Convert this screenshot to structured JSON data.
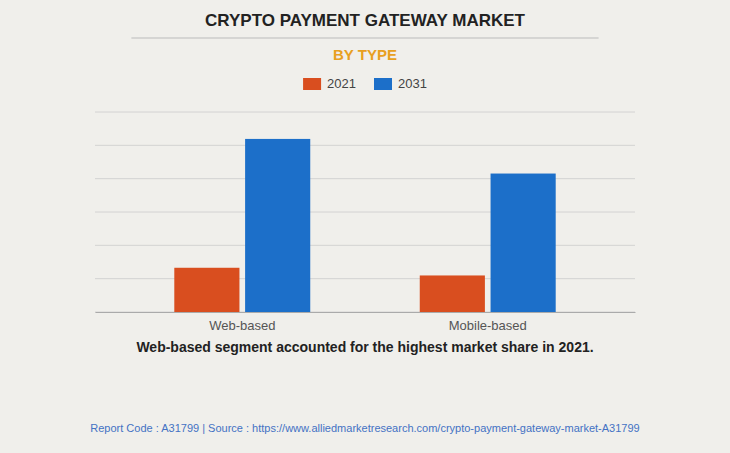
{
  "chart_data": {
    "type": "bar",
    "title": "CRYPTO PAYMENT GATEWAY MARKET",
    "subtitle": "BY TYPE",
    "categories": [
      "Web-based",
      "Mobile-based"
    ],
    "series": [
      {
        "name": "2021",
        "color": "#d94e1f",
        "values": [
          1.15,
          0.95
        ]
      },
      {
        "name": "2031",
        "color": "#1c6fc9",
        "values": [
          4.5,
          3.6
        ]
      }
    ],
    "ylim": [
      0,
      5.2
    ],
    "yticks": [
      0,
      0.8666666666666667,
      1.7333333333333334,
      2.6,
      3.466666666666667,
      4.333333333333333,
      5.2
    ],
    "grid": true,
    "tick_labels": "x",
    "legend": "top",
    "annotations": [
      "Web-based segment accounted for the highest market share in 2021.",
      "Report Code : A31799  |  Source : https://www.alliedmarketresearch.com/crypto-payment-gateway-market-A31799"
    ]
  }
}
